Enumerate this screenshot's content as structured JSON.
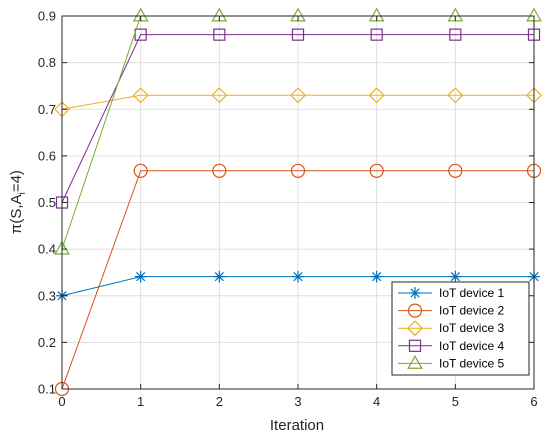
{
  "chart_data": {
    "type": "line",
    "xlabel": "Iteration",
    "ylabel_parts": {
      "pre": "π(S,A",
      "sub": "i",
      "post": "=4)"
    },
    "xlim": [
      0,
      6
    ],
    "ylim": [
      0.1,
      0.9
    ],
    "xticks": [
      0,
      1,
      2,
      3,
      4,
      5,
      6
    ],
    "yticks": [
      0.1,
      0.2,
      0.3,
      0.4,
      0.5,
      0.6,
      0.7,
      0.8,
      0.9
    ],
    "xtick_labels": [
      "0",
      "1",
      "2",
      "3",
      "4",
      "5",
      "6"
    ],
    "ytick_labels": [
      "0.1",
      "0.2",
      "0.3",
      "0.4",
      "0.5",
      "0.6",
      "0.7",
      "0.8",
      "0.9"
    ],
    "grid": true,
    "legend_position": "bottom-right",
    "x": [
      0,
      1,
      2,
      3,
      4,
      5,
      6
    ],
    "series": [
      {
        "name": "IoT device 1",
        "color": "#0072BD",
        "marker": "asterisk",
        "values": [
          0.3,
          0.341,
          0.341,
          0.341,
          0.341,
          0.341,
          0.341
        ]
      },
      {
        "name": "IoT device 2",
        "color": "#D95319",
        "marker": "circle",
        "values": [
          0.1,
          0.568,
          0.568,
          0.568,
          0.568,
          0.568,
          0.568
        ]
      },
      {
        "name": "IoT device 3",
        "color": "#EDB120",
        "marker": "diamond",
        "values": [
          0.7,
          0.73,
          0.73,
          0.73,
          0.73,
          0.73,
          0.73
        ]
      },
      {
        "name": "IoT device 4",
        "color": "#7E2F8E",
        "marker": "square",
        "values": [
          0.5,
          0.86,
          0.86,
          0.86,
          0.86,
          0.86,
          0.86
        ]
      },
      {
        "name": "IoT device 5",
        "color": "#77AC30",
        "marker": "triangle",
        "values": [
          0.4,
          0.9,
          0.9,
          0.9,
          0.9,
          0.9,
          0.9
        ]
      }
    ]
  }
}
